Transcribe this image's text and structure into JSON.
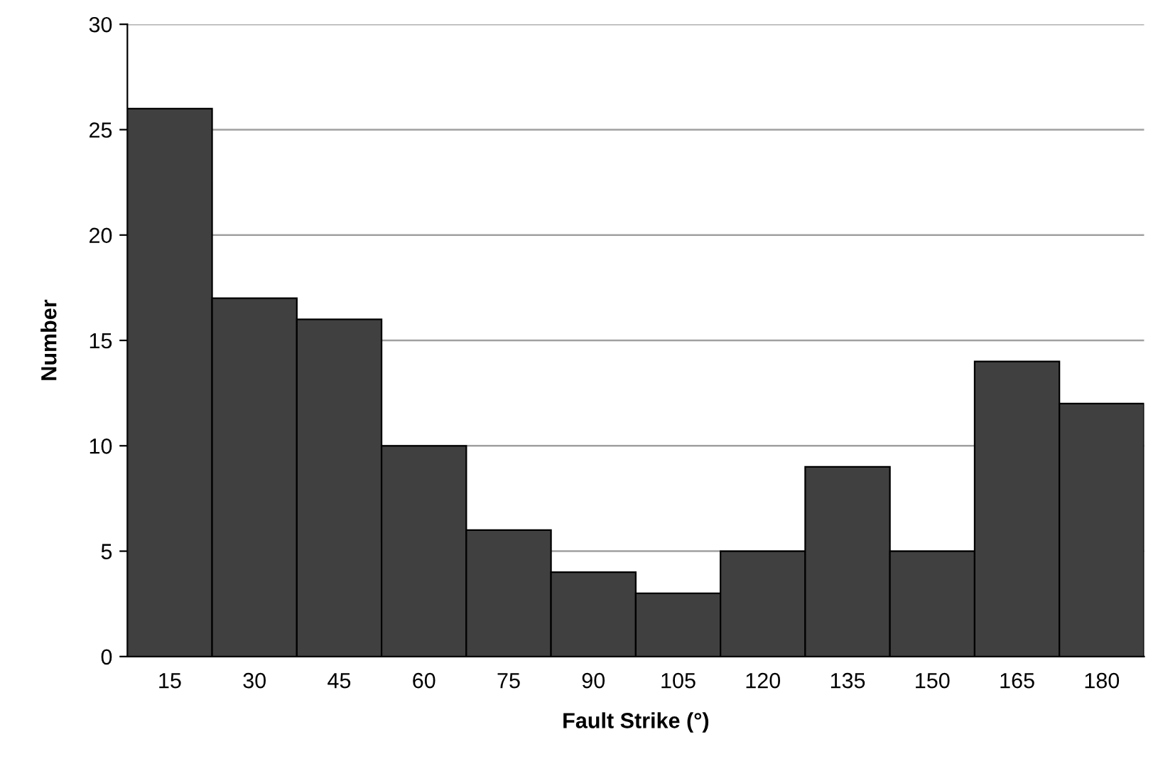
{
  "chart_data": {
    "type": "bar",
    "xlabel": "Fault Strike (°)",
    "ylabel": "Number",
    "categories": [
      "15",
      "30",
      "45",
      "60",
      "75",
      "90",
      "105",
      "120",
      "135",
      "150",
      "165",
      "180"
    ],
    "values": [
      26,
      17,
      16,
      10,
      6,
      4,
      3,
      5,
      9,
      5,
      14,
      12
    ],
    "color": "#404040",
    "ylim": [
      0,
      30
    ],
    "yticks": [
      0,
      5,
      10,
      15,
      20,
      25,
      30
    ],
    "grid": "y"
  }
}
